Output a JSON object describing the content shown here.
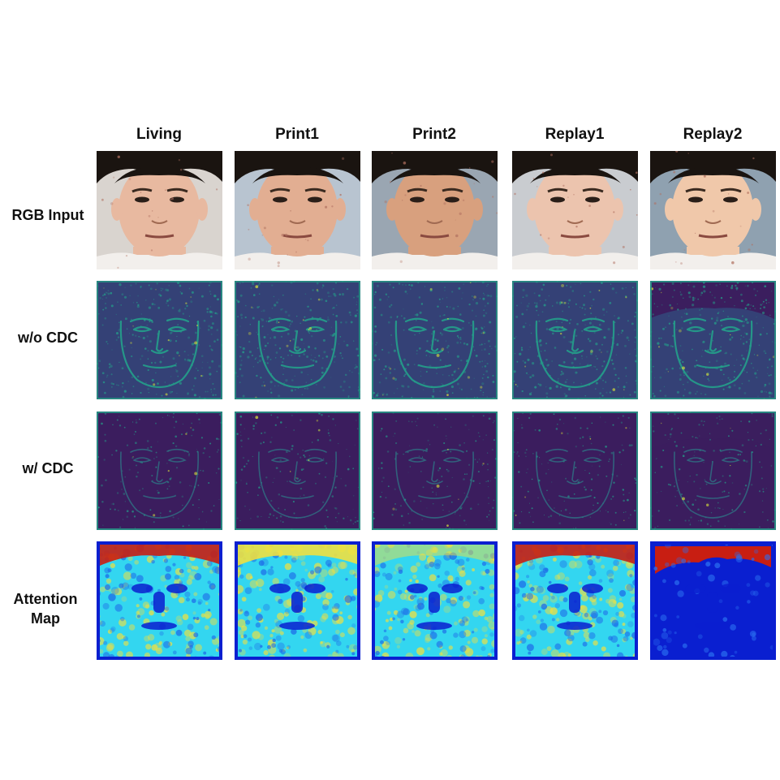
{
  "columns": [
    "Living",
    "Print1",
    "Print2",
    "Replay1",
    "Replay2"
  ],
  "rows": [
    {
      "label": "RGB Input",
      "kind": "rgb"
    },
    {
      "label": "w/o CDC",
      "kind": "feat_wo"
    },
    {
      "label": "w/ CDC",
      "kind": "feat_w"
    },
    {
      "label": "Attention Map",
      "kind": "attention"
    }
  ],
  "colors": {
    "viridis_dark": "#3b1e5e",
    "viridis_mid": "#2f5f8a",
    "viridis_teal": "#24a08a",
    "viridis_yellow": "#d8e23a",
    "jet_blue": "#0a1fd0",
    "jet_cyan": "#33d6f0",
    "jet_yellow": "#f0e040",
    "jet_red": "#c81e12",
    "skin": "#e6b89c",
    "hair": "#1a1410"
  }
}
